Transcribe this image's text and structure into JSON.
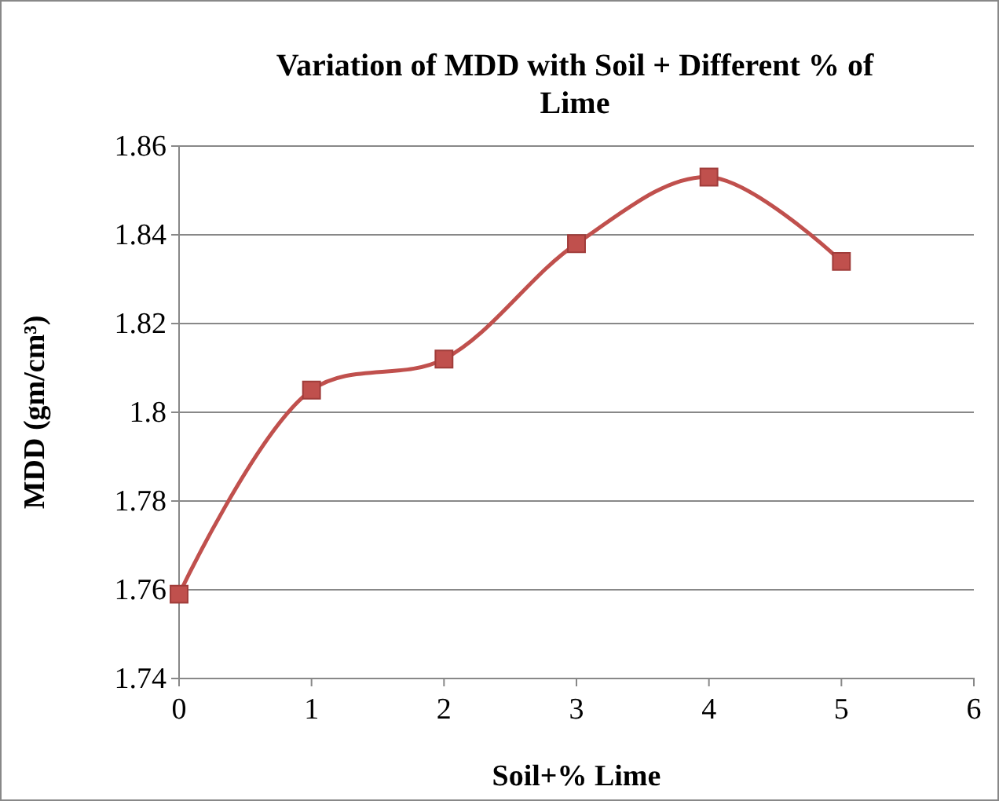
{
  "chart_data": {
    "type": "line",
    "title": "Variation of MDD with Soil + Different % of Lime",
    "xlabel": "Soil+% Lime",
    "ylabel": "MDD (gm/cm³)",
    "x": [
      0,
      1,
      2,
      3,
      4,
      5
    ],
    "series": [
      {
        "color": "#c0504d",
        "values": [
          1.759,
          1.805,
          1.812,
          1.838,
          1.853,
          1.834
        ]
      }
    ],
    "xlim": [
      0,
      6
    ],
    "xticks": [
      0,
      1,
      2,
      3,
      4,
      5,
      6
    ],
    "ylim": [
      1.74,
      1.86
    ],
    "yticks": [
      {
        "value": 1.74,
        "label": "1.74"
      },
      {
        "value": 1.76,
        "label": "1.76"
      },
      {
        "value": 1.78,
        "label": "1.78"
      },
      {
        "value": 1.8,
        "label": "1.8"
      },
      {
        "value": 1.82,
        "label": "1.82"
      },
      {
        "value": 1.84,
        "label": "1.84"
      },
      {
        "value": 1.86,
        "label": "1.86"
      }
    ],
    "grid": "y",
    "marker": "square",
    "line_style": "solid"
  }
}
